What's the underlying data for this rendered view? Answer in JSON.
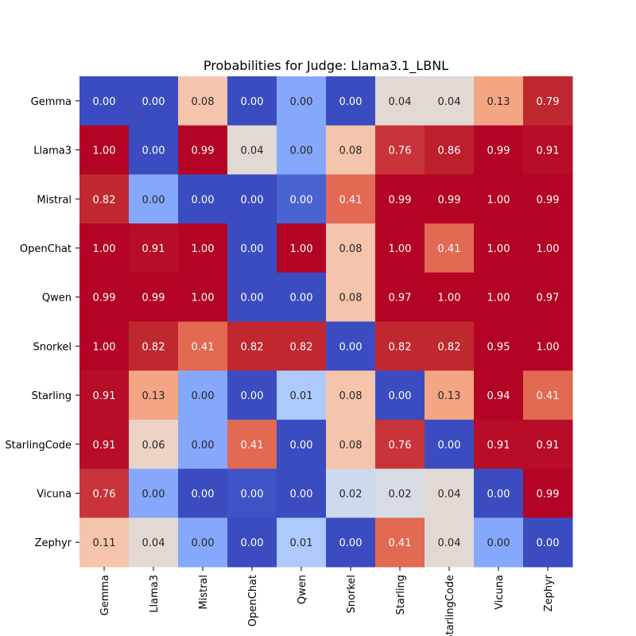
{
  "chart_data": {
    "type": "heatmap",
    "title": "Probabilities for Judge: Llama3.1_LBNL",
    "xlabel": "",
    "ylabel": "",
    "x_categories": [
      "Gemma",
      "Llama3",
      "Mistral",
      "OpenChat",
      "Qwen",
      "Snorkel",
      "Starling",
      "StarlingCode",
      "Vicuna",
      "Zephyr"
    ],
    "y_categories": [
      "Gemma",
      "Llama3",
      "Mistral",
      "OpenChat",
      "Qwen",
      "Snorkel",
      "Starling",
      "StarlingCode",
      "Vicuna",
      "Zephyr"
    ],
    "values": [
      [
        0.0,
        0.0,
        0.08,
        0.0,
        0.0,
        0.0,
        0.04,
        0.04,
        0.13,
        0.79
      ],
      [
        1.0,
        0.0,
        0.99,
        0.04,
        0.0,
        0.08,
        0.76,
        0.86,
        0.99,
        0.91
      ],
      [
        0.82,
        0.0,
        0.0,
        0.0,
        0.0,
        0.41,
        0.99,
        0.99,
        1.0,
        0.99
      ],
      [
        1.0,
        0.91,
        1.0,
        0.0,
        1.0,
        0.08,
        1.0,
        0.41,
        1.0,
        1.0
      ],
      [
        0.99,
        0.99,
        1.0,
        0.0,
        0.0,
        0.08,
        0.97,
        1.0,
        1.0,
        0.97
      ],
      [
        1.0,
        0.82,
        0.41,
        0.82,
        0.82,
        0.0,
        0.82,
        0.82,
        0.95,
        1.0
      ],
      [
        0.91,
        0.13,
        0.0,
        0.0,
        0.01,
        0.08,
        0.0,
        0.13,
        0.94,
        0.41
      ],
      [
        0.91,
        0.06,
        0.0,
        0.41,
        0.0,
        0.08,
        0.76,
        0.0,
        0.91,
        0.91
      ],
      [
        0.76,
        0.0,
        0.0,
        0.0,
        0.0,
        0.02,
        0.02,
        0.04,
        0.0,
        0.99
      ],
      [
        0.11,
        0.04,
        0.0,
        0.0,
        0.01,
        0.0,
        0.41,
        0.04,
        0.0,
        0.0
      ]
    ],
    "colors": [
      [
        "#3b4cc0",
        "#3b4cc0",
        "#f5c4ac",
        "#3b4cc0",
        "#85a8fc",
        "#3b4cc0",
        "#e2d9d4",
        "#e2d9d4",
        "#f4a584",
        "#c0282f"
      ],
      [
        "#b40426",
        "#3b4cc0",
        "#b40426",
        "#e2d9d4",
        "#85a8fc",
        "#f5c4ac",
        "#c9343a",
        "#bd1f2d",
        "#b40426",
        "#b70d28"
      ],
      [
        "#c0282f",
        "#85a8fc",
        "#3b4cc0",
        "#3b4cc0",
        "#4a63d3",
        "#e26952",
        "#b40426",
        "#b40426",
        "#b40426",
        "#b40426"
      ],
      [
        "#b40426",
        "#b70d28",
        "#b40426",
        "#3b4cc0",
        "#b40426",
        "#f5c4ac",
        "#b40426",
        "#e26952",
        "#b40426",
        "#b40426"
      ],
      [
        "#b40426",
        "#b40426",
        "#b40426",
        "#3b4cc0",
        "#3b4cc0",
        "#f5c4ac",
        "#b40426",
        "#b40426",
        "#b40426",
        "#b40426"
      ],
      [
        "#b40426",
        "#c0282f",
        "#e26952",
        "#c0282f",
        "#c0282f",
        "#3b4cc0",
        "#c0282f",
        "#c0282f",
        "#b40426",
        "#b40426"
      ],
      [
        "#b70d28",
        "#f4a584",
        "#85a8fc",
        "#3b4cc0",
        "#aec9fc",
        "#f5c4ac",
        "#3b4cc0",
        "#f4a584",
        "#b40426",
        "#e26952"
      ],
      [
        "#b70d28",
        "#ecd3c5",
        "#85a8fc",
        "#e26952",
        "#3b4cc0",
        "#f5c4ac",
        "#c9343a",
        "#3b4cc0",
        "#b70d28",
        "#b70d28"
      ],
      [
        "#c9343a",
        "#85a8fc",
        "#3b4cc0",
        "#3f53c6",
        "#3b4cc0",
        "#cdd9ec",
        "#d7dce3",
        "#e2d9d4",
        "#3b4cc0",
        "#b40426"
      ],
      [
        "#f5c4ac",
        "#e2d9d4",
        "#85a8fc",
        "#3b4cc0",
        "#aec9fc",
        "#3b4cc0",
        "#e26952",
        "#e2d9d4",
        "#85a8fc",
        "#3b4cc0"
      ]
    ]
  }
}
